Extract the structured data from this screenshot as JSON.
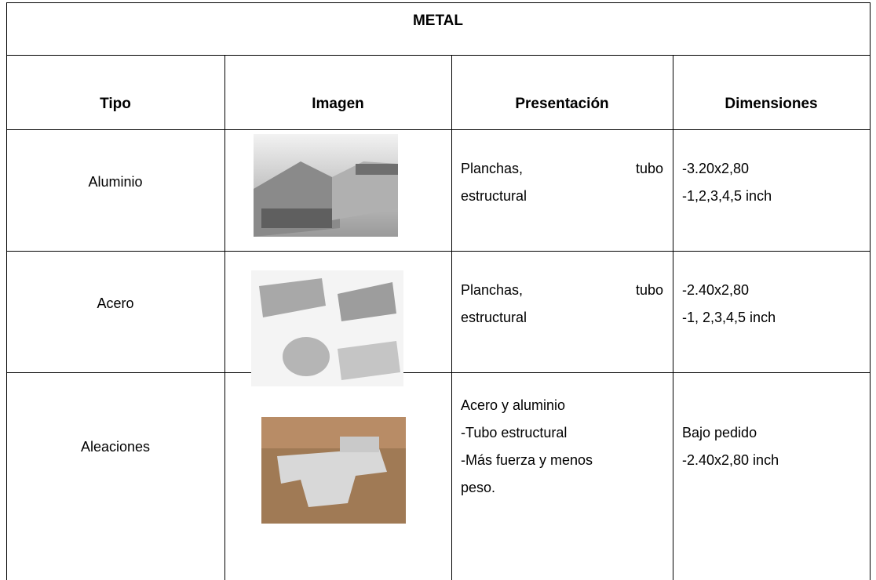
{
  "table": {
    "title": "METAL",
    "headers": [
      "Tipo",
      "Imagen",
      "Presentación",
      "Dimensiones"
    ],
    "rows": [
      {
        "tipo": "Aluminio",
        "presentacion": [
          "Planchas, tubo",
          "estructural"
        ],
        "dimensiones": [
          "-3.20x2,80",
          "-1,2,3,4,5 inch"
        ]
      },
      {
        "tipo": "Acero",
        "presentacion": [
          "Planchas, tubo",
          "estructural"
        ],
        "dimensiones": [
          "-2.40x2,80",
          "-1, 2,3,4,5 inch"
        ]
      },
      {
        "tipo": "Aleaciones",
        "presentacion": [
          "Acero y aluminio",
          "-Tubo estructural",
          "-Más fuerza y menos",
          "peso."
        ],
        "dimensiones": [
          "Bajo pedido",
          "-2.40x2,80 inch"
        ]
      }
    ]
  }
}
